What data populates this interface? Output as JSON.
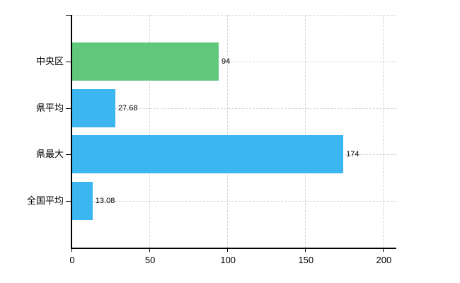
{
  "chart_data": {
    "type": "bar",
    "orientation": "horizontal",
    "title": "",
    "xlabel": "",
    "ylabel": "",
    "categories": [
      "中央区",
      "県平均",
      "県最大",
      "全国平均"
    ],
    "values": [
      94,
      27.68,
      174,
      13.08
    ],
    "value_labels": [
      "94",
      "27.68",
      "174",
      "13.08"
    ],
    "bar_colors": [
      "#5fc87a",
      "#3cb6f0",
      "#3cb6f0",
      "#3cb6f0"
    ],
    "x_ticks": [
      0,
      50,
      100,
      150,
      200
    ],
    "x_tick_labels": [
      "0",
      "50",
      "100",
      "150",
      "200"
    ],
    "xlim": [
      0,
      208
    ],
    "grid": {
      "vertical_at_ticks": true,
      "horizontal_at_category_centers": true,
      "top_boundary_line": true,
      "style": "dashed"
    },
    "legend_position": "none"
  },
  "colors": {
    "bar_green": "#5fc87a",
    "bar_blue": "#3cb6f0",
    "gridline": "#d4d4d4",
    "axis": "#000000",
    "text": "#000000",
    "background": "#ffffff"
  }
}
